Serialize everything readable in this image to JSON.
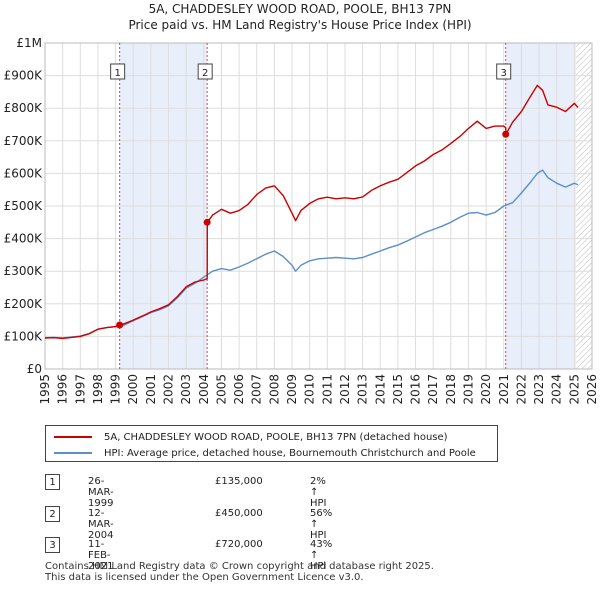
{
  "title": {
    "line1": "5A, CHADDESLEY WOOD ROAD, POOLE, BH13 7PN",
    "line2": "Price paid vs. HM Land Registry's House Price Index (HPI)"
  },
  "chart_data": {
    "type": "line",
    "title": "5A, CHADDESLEY WOOD ROAD, POOLE, BH13 7PN",
    "subtitle": "Price paid vs. HM Land Registry's House Price Index (HPI)",
    "xlabel": "",
    "ylabel": "",
    "xlim": [
      1995,
      2026
    ],
    "ylim": [
      0,
      1000000
    ],
    "x_ticks": [
      "1995",
      "1996",
      "1997",
      "1998",
      "1999",
      "2000",
      "2001",
      "2002",
      "2003",
      "2004",
      "2005",
      "2006",
      "2007",
      "2008",
      "2009",
      "2010",
      "2011",
      "2012",
      "2013",
      "2014",
      "2015",
      "2016",
      "2017",
      "2018",
      "2019",
      "2020",
      "2021",
      "2022",
      "2023",
      "2024",
      "2025",
      "2026"
    ],
    "y_ticks": [
      {
        "value": 0,
        "label": "£0"
      },
      {
        "value": 100000,
        "label": "£100K"
      },
      {
        "value": 200000,
        "label": "£200K"
      },
      {
        "value": 300000,
        "label": "£300K"
      },
      {
        "value": 400000,
        "label": "£400K"
      },
      {
        "value": 500000,
        "label": "£500K"
      },
      {
        "value": 600000,
        "label": "£600K"
      },
      {
        "value": 700000,
        "label": "£700K"
      },
      {
        "value": 800000,
        "label": "£800K"
      },
      {
        "value": 900000,
        "label": "£900K"
      },
      {
        "value": 1000000,
        "label": "£1M"
      }
    ],
    "grid": true,
    "colors": {
      "property": "#cc0000",
      "hpi": "#5b8fc9",
      "shade": "#e8eefa",
      "vline": "#dd4444"
    },
    "series": [
      {
        "name": "5A, CHADDESLEY WOOD ROAD, POOLE, BH13 7PN (detached house)",
        "color": "#cc0000",
        "x": [
          1995.0,
          1995.5,
          1996.0,
          1996.5,
          1997.0,
          1997.5,
          1998.0,
          1998.5,
          1999.0,
          1999.23,
          1999.5,
          2000.0,
          2000.5,
          2001.0,
          2001.5,
          2002.0,
          2002.5,
          2003.0,
          2003.5,
          2004.0,
          2004.19,
          2004.2,
          2004.5,
          2005.0,
          2005.5,
          2006.0,
          2006.5,
          2007.0,
          2007.5,
          2008.0,
          2008.5,
          2009.0,
          2009.2,
          2009.5,
          2010.0,
          2010.5,
          2011.0,
          2011.5,
          2012.0,
          2012.5,
          2013.0,
          2013.5,
          2014.0,
          2014.5,
          2015.0,
          2015.5,
          2016.0,
          2016.5,
          2017.0,
          2017.5,
          2018.0,
          2018.5,
          2019.0,
          2019.5,
          2020.0,
          2020.5,
          2021.0,
          2021.11,
          2021.12,
          2021.5,
          2022.0,
          2022.5,
          2022.9,
          2023.2,
          2023.5,
          2024.0,
          2024.5,
          2025.0,
          2025.2
        ],
        "values": [
          95000,
          96000,
          94000,
          97000,
          100000,
          108000,
          122000,
          127000,
          130000,
          135000,
          139000,
          150000,
          162000,
          175000,
          185000,
          197000,
          222000,
          252000,
          267000,
          273000,
          277000,
          450000,
          472000,
          490000,
          478000,
          486000,
          505000,
          535000,
          555000,
          562000,
          532000,
          478000,
          455000,
          486000,
          508000,
          522000,
          527000,
          522000,
          525000,
          522000,
          528000,
          548000,
          562000,
          573000,
          582000,
          602000,
          623000,
          638000,
          658000,
          672000,
          692000,
          713000,
          738000,
          760000,
          738000,
          745000,
          745000,
          740000,
          720000,
          757000,
          790000,
          835000,
          870000,
          855000,
          810000,
          803000,
          790000,
          815000,
          802000
        ]
      },
      {
        "name": "HPI: Average price, detached house, Bournemouth Christchurch and Poole",
        "color": "#5b8fc9",
        "x": [
          1995.0,
          1995.5,
          1996.0,
          1996.5,
          1997.0,
          1997.5,
          1998.0,
          1998.5,
          1999.0,
          1999.5,
          2000.0,
          2000.5,
          2001.0,
          2001.5,
          2002.0,
          2002.5,
          2003.0,
          2003.5,
          2004.0,
          2004.5,
          2005.0,
          2005.5,
          2006.0,
          2006.5,
          2007.0,
          2007.5,
          2008.0,
          2008.5,
          2009.0,
          2009.2,
          2009.5,
          2010.0,
          2010.5,
          2011.0,
          2011.5,
          2012.0,
          2012.5,
          2013.0,
          2013.5,
          2014.0,
          2014.5,
          2015.0,
          2015.5,
          2016.0,
          2016.5,
          2017.0,
          2017.5,
          2018.0,
          2018.5,
          2019.0,
          2019.5,
          2020.0,
          2020.5,
          2021.0,
          2021.5,
          2022.0,
          2022.5,
          2022.9,
          2023.2,
          2023.5,
          2024.0,
          2024.5,
          2025.0,
          2025.2
        ],
        "values": [
          96000,
          97000,
          95000,
          98000,
          101000,
          109000,
          122000,
          127000,
          130000,
          135000,
          148000,
          160000,
          173000,
          182000,
          194000,
          218000,
          248000,
          263000,
          282000,
          300000,
          308000,
          303000,
          313000,
          325000,
          338000,
          352000,
          362000,
          345000,
          318000,
          300000,
          318000,
          332000,
          338000,
          340000,
          342000,
          340000,
          338000,
          342000,
          352000,
          362000,
          372000,
          380000,
          392000,
          405000,
          418000,
          428000,
          438000,
          450000,
          465000,
          478000,
          480000,
          472000,
          480000,
          500000,
          510000,
          540000,
          572000,
          600000,
          610000,
          587000,
          570000,
          558000,
          570000,
          565000
        ]
      }
    ],
    "sales": [
      {
        "label": "1",
        "x": 1999.23,
        "value": 135000,
        "date": "26-MAR-1999",
        "price": "£135,000",
        "hpi": "2% ↑ HPI"
      },
      {
        "label": "2",
        "x": 2004.19,
        "value": 450000,
        "date": "12-MAR-2004",
        "price": "£450,000",
        "hpi": "56% ↑ HPI"
      },
      {
        "label": "3",
        "x": 2021.11,
        "value": 720000,
        "date": "11-FEB-2021",
        "price": "£720,000",
        "hpi": "43% ↑ HPI"
      }
    ],
    "shaded_ranges": [
      [
        1999.23,
        2004.19
      ],
      [
        2021.11,
        2025.1
      ]
    ],
    "hatched_from": 2025.1
  },
  "legend": {
    "property": "5A, CHADDESLEY WOOD ROAD, POOLE, BH13 7PN (detached house)",
    "hpi": "HPI: Average price, detached house, Bournemouth Christchurch and Poole"
  },
  "footer": {
    "line1": "Contains HM Land Registry data © Crown copyright and database right 2025.",
    "line2": "This data is licensed under the Open Government Licence v3.0."
  }
}
